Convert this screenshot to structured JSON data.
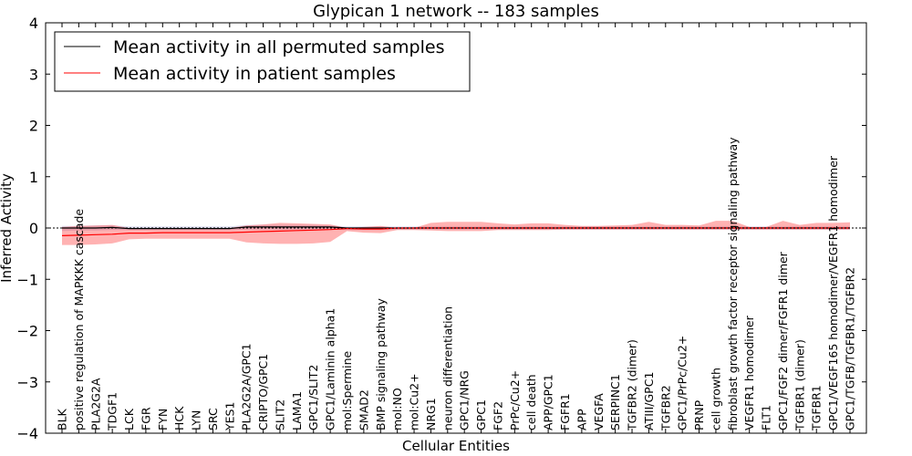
{
  "chart_data": {
    "type": "line",
    "title": "Glypican 1 network -- 183 samples",
    "xlabel": "Cellular Entities",
    "ylabel": "Inferred Activity",
    "ylim": [
      -4,
      4
    ],
    "yticks": [
      -4,
      -3,
      -2,
      -1,
      0,
      1,
      2,
      3,
      4
    ],
    "ytick_labels": [
      "−4",
      "−3",
      "−2",
      "−1",
      "0",
      "1",
      "2",
      "3",
      "4"
    ],
    "grid": false,
    "legend_position": "top-left",
    "categories": [
      "BLK",
      "positive regulation of MAPKKK cascade",
      "PLA2G2A",
      "TDGF1",
      "LCK",
      "FGR",
      "FYN",
      "HCK",
      "LYN",
      "SRC",
      "YES1",
      "PLA2G2A/GPC1",
      "CRIPTO/GPC1",
      "SLIT2",
      "LAMA1",
      "GPC1/SLIT2",
      "GPC1/Laminin alpha1",
      "mol:Spermine",
      "SMAD2",
      "BMP signaling pathway",
      "mol:NO",
      "mol:Cu2+",
      "NRG1",
      "neuron differentiation",
      "GPC1/NRG",
      "GPC1",
      "FGF2",
      "PrPc/Cu2+",
      "cell death",
      "APP/GPC1",
      "FGFR1",
      "APP",
      "VEGFA",
      "SERPINC1",
      "TGFBR2 (dimer)",
      "ATIII/GPC1",
      "TGFBR2",
      "GPC1/PrPc/Cu2+",
      "PRNP",
      "cell growth",
      "fibroblast growth factor receptor signaling pathway",
      "VEGFR1 homodimer",
      "FLT1",
      "GPC1/FGF2 dimer/FGFR1 dimer",
      "TGFBR1 (dimer)",
      "TGFBR1",
      "GPC1/VEGF165 homodimer/VEGFR1 homodimer",
      "GPC1/TGFB/TGFBR1/TGFBR2"
    ],
    "series": [
      {
        "name": "Mean activity in all permuted samples",
        "color": "#000000",
        "values": [
          0.0,
          0.0,
          0.0,
          0.01,
          -0.01,
          -0.01,
          -0.01,
          -0.01,
          -0.01,
          -0.01,
          -0.01,
          0.02,
          0.02,
          0.02,
          0.02,
          0.02,
          0.02,
          0.0,
          0.0,
          0.0,
          0.0,
          0.0,
          0.0,
          0.0,
          0.0,
          0.0,
          0.0,
          0.0,
          0.0,
          0.0,
          0.0,
          0.0,
          0.0,
          0.0,
          0.0,
          0.0,
          0.0,
          0.0,
          0.0,
          0.0,
          0.0,
          0.0,
          0.0,
          0.0,
          0.0,
          0.0,
          0.0,
          0.0
        ],
        "band_lower": [
          -0.06,
          -0.05,
          -0.05,
          -0.04,
          -0.04,
          -0.04,
          -0.04,
          -0.04,
          -0.04,
          -0.04,
          -0.04,
          -0.03,
          -0.03,
          -0.03,
          -0.03,
          -0.03,
          -0.03,
          -0.04,
          -0.04,
          -0.04,
          -0.03,
          -0.03,
          -0.03,
          -0.03,
          -0.03,
          -0.03,
          -0.03,
          -0.03,
          -0.03,
          -0.03,
          -0.03,
          -0.03,
          -0.03,
          -0.03,
          -0.03,
          -0.03,
          -0.03,
          -0.03,
          -0.03,
          -0.03,
          -0.03,
          -0.03,
          -0.03,
          -0.03,
          -0.03,
          -0.03,
          -0.03,
          -0.03
        ],
        "band_upper": [
          0.04,
          0.04,
          0.05,
          0.05,
          0.03,
          0.03,
          0.03,
          0.03,
          0.03,
          0.03,
          0.03,
          0.06,
          0.06,
          0.06,
          0.06,
          0.06,
          0.05,
          0.03,
          0.03,
          0.03,
          0.03,
          0.03,
          0.03,
          0.03,
          0.03,
          0.03,
          0.03,
          0.03,
          0.03,
          0.03,
          0.03,
          0.03,
          0.03,
          0.03,
          0.03,
          0.03,
          0.03,
          0.03,
          0.03,
          0.03,
          0.03,
          0.03,
          0.03,
          0.03,
          0.03,
          0.03,
          0.03,
          0.03
        ]
      },
      {
        "name": "Mean activity in patient samples",
        "color": "#ff0000",
        "values": [
          -0.15,
          -0.14,
          -0.13,
          -0.12,
          -0.1,
          -0.1,
          -0.09,
          -0.09,
          -0.09,
          -0.09,
          -0.09,
          -0.08,
          -0.07,
          -0.06,
          -0.05,
          -0.04,
          -0.03,
          -0.01,
          -0.02,
          -0.02,
          0.0,
          0.0,
          0.0,
          0.0,
          0.0,
          0.0,
          0.0,
          0.0,
          0.0,
          0.0,
          0.0,
          0.0,
          0.0,
          0.0,
          0.0,
          0.0,
          0.0,
          0.0,
          0.0,
          0.0,
          0.0,
          0.0,
          0.0,
          0.0,
          0.0,
          0.0,
          0.0,
          0.0
        ],
        "band_lower": [
          -0.33,
          -0.33,
          -0.32,
          -0.3,
          -0.22,
          -0.21,
          -0.21,
          -0.21,
          -0.21,
          -0.21,
          -0.21,
          -0.28,
          -0.3,
          -0.31,
          -0.31,
          -0.3,
          -0.27,
          -0.06,
          -0.09,
          -0.1,
          -0.04,
          -0.04,
          -0.05,
          -0.06,
          -0.06,
          -0.06,
          -0.04,
          -0.04,
          -0.04,
          -0.04,
          -0.03,
          -0.03,
          -0.03,
          -0.03,
          -0.03,
          -0.03,
          -0.03,
          -0.03,
          -0.03,
          -0.03,
          -0.03,
          -0.03,
          -0.03,
          -0.03,
          -0.03,
          -0.03,
          -0.03,
          -0.03
        ],
        "band_upper": [
          0.02,
          0.04,
          0.05,
          0.06,
          0.0,
          0.0,
          0.0,
          0.0,
          0.0,
          0.0,
          0.0,
          0.05,
          0.07,
          0.1,
          0.09,
          0.08,
          0.07,
          0.0,
          0.02,
          0.04,
          0.0,
          0.0,
          0.1,
          0.12,
          0.12,
          0.12,
          0.09,
          0.07,
          0.09,
          0.09,
          0.06,
          0.04,
          0.04,
          0.05,
          0.06,
          0.12,
          0.06,
          0.06,
          0.05,
          0.14,
          0.14,
          0.02,
          0.02,
          0.14,
          0.06,
          0.1,
          0.1,
          0.11
        ]
      }
    ]
  }
}
